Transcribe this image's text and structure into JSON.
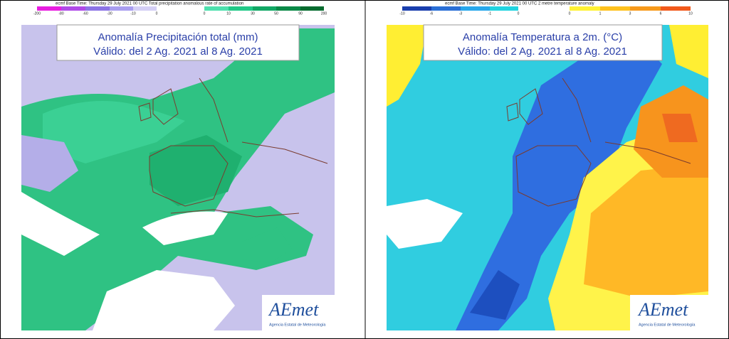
{
  "panels": [
    {
      "header": "ecmf  Base Time: Thursday 29 July 2021 00 UTC Total precipitation anomalous rate of accumulation",
      "scale_labels": [
        -200,
        -80,
        -60,
        -30,
        -10,
        0,
        0,
        10,
        30,
        50,
        90,
        200
      ],
      "title": "Anomalía Precipitación total (mm)",
      "subtitle": "Válido: del 2 Ag. 2021 al 8 Ag. 2021",
      "logo": "AEmet",
      "logo_caption": "Agencia Estatal de Meteorología"
    },
    {
      "header": "ecmf  Base Time: Thursday 29 July 2021 00 UTC 2 metre temperature anomaly",
      "scale_labels": [
        -10,
        -6,
        -3,
        -1,
        0,
        0,
        1,
        3,
        6,
        10
      ],
      "title": "Anomalía Temperatura a 2m. (°C)",
      "subtitle": "Válido: del 2 Ag. 2021 al 8 Ag. 2021",
      "logo": "AEmet",
      "logo_caption": "Agencia Estatal de Meteorología"
    }
  ]
}
